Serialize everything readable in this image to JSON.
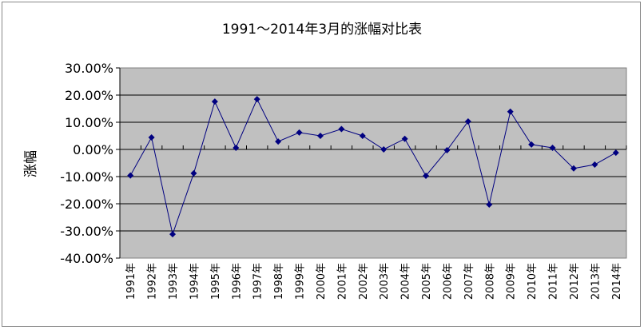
{
  "chart_data": {
    "type": "line",
    "title": "1991～2014年3月的涨幅对比表",
    "xlabel": "",
    "ylabel": "涨幅",
    "categories": [
      "1991年",
      "1992年",
      "1993年",
      "1994年",
      "1995年",
      "1996年",
      "1997年",
      "1998年",
      "1999年",
      "2000年",
      "2001年",
      "2002年",
      "2003年",
      "2004年",
      "2005年",
      "2006年",
      "2007年",
      "2008年",
      "2009年",
      "2010年",
      "2011年",
      "2012年",
      "2013年",
      "2014年"
    ],
    "values": [
      -9.6,
      4.4,
      -31.2,
      -8.8,
      17.6,
      0.6,
      18.5,
      2.9,
      6.2,
      5.0,
      7.5,
      5.0,
      0.0,
      3.9,
      -9.7,
      -0.3,
      10.3,
      -20.3,
      13.9,
      1.8,
      0.6,
      -7.0,
      -5.6,
      -1.2
    ],
    "unit": "%",
    "ylim": [
      -40,
      30
    ],
    "yticks": [
      "30.00%",
      "20.00%",
      "10.00%",
      "0.00%",
      "-10.00%",
      "-20.00%",
      "-30.00%",
      "-40.00%"
    ],
    "grid": true,
    "legend": "none",
    "colors": {
      "line": "#000080",
      "plot_bg": "#c0c0c0",
      "grid": "#000000"
    }
  }
}
